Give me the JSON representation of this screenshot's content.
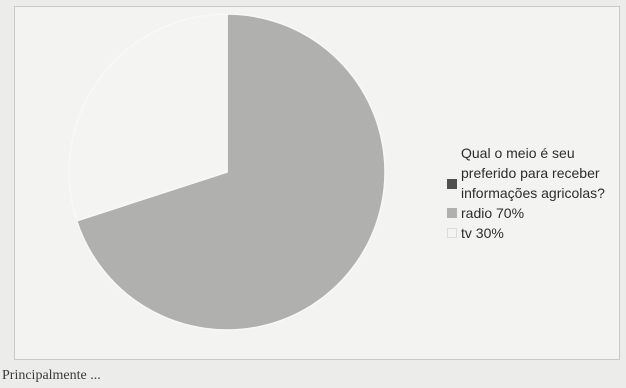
{
  "chart_data": {
    "type": "pie",
    "legend_title": "Qual  o meio é seu preferido para receber informações agricolas?",
    "slices": [
      {
        "label": "radio 70%",
        "value": 70,
        "color": "#b0b0ae"
      },
      {
        "label": "tv 30%",
        "value": 30,
        "color": "#f4f4f2"
      }
    ],
    "title_color": "#505050",
    "legend_placement": "right"
  },
  "caption": "Principalmente ..."
}
